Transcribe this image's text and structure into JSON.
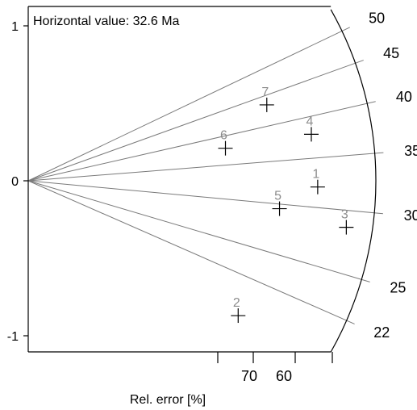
{
  "chart_data": {
    "type": "scatter",
    "subtype": "radial-plot",
    "annotation": "Horizontal value: 32.6  Ma",
    "xlabel": "Rel. error [%]",
    "x_tick_labels": [
      "70",
      "60"
    ],
    "y_ticks": [
      1,
      0,
      -1
    ],
    "y_tick_labels": [
      "1",
      "0",
      "-1"
    ],
    "ylim": [
      -1.1,
      1.1
    ],
    "radial_scale": {
      "ticks": [
        50,
        45,
        40,
        35,
        30,
        25,
        22
      ],
      "labels": [
        "50",
        "45",
        "40",
        "35",
        "30",
        "25",
        "22"
      ],
      "reference_value": 32.6
    },
    "points": [
      {
        "label": "1",
        "x": 0.91,
        "y": -0.04
      },
      {
        "label": "2",
        "x": 0.66,
        "y": -0.87
      },
      {
        "label": "3",
        "x": 1.0,
        "y": -0.3
      },
      {
        "label": "4",
        "x": 0.89,
        "y": 0.3
      },
      {
        "label": "5",
        "x": 0.79,
        "y": -0.18
      },
      {
        "label": "6",
        "x": 0.62,
        "y": 0.21
      },
      {
        "label": "7",
        "x": 0.75,
        "y": 0.49
      }
    ],
    "colors": {
      "point": "#000000",
      "point_label": "#8c8c8c",
      "ray": "#7a7a7a",
      "axis": "#000000"
    }
  }
}
